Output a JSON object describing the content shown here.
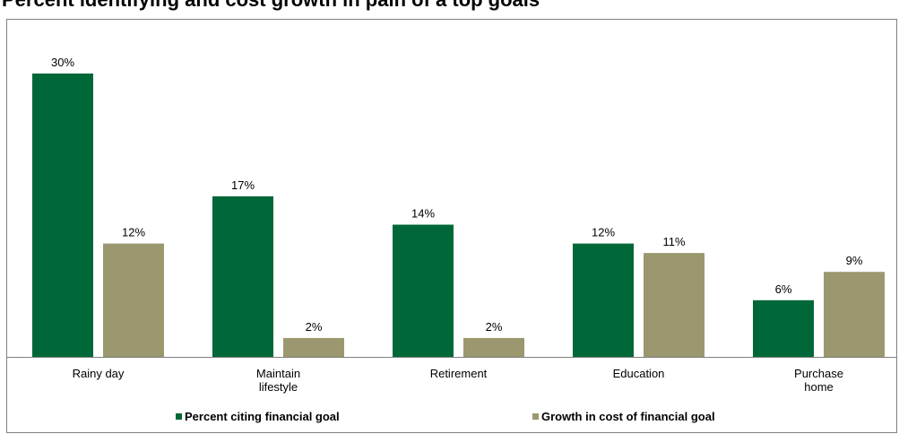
{
  "chart_data": {
    "type": "bar",
    "title": "Percent identifying and cost growth in pain of a top goals",
    "categories": [
      [
        "Rainy day"
      ],
      [
        "Maintain",
        "lifestyle"
      ],
      [
        "Retirement"
      ],
      [
        "Education"
      ],
      [
        "Purchase",
        "home"
      ]
    ],
    "series": [
      {
        "name": "Percent citing financial goal",
        "values": [
          30,
          17,
          14,
          12,
          6
        ],
        "color": "#006838"
      },
      {
        "name": "Growth in cost of financial goal",
        "values": [
          12,
          2,
          2,
          11,
          9
        ],
        "color": "#9b9870"
      }
    ],
    "value_format": "percent",
    "ylim": [
      0,
      30
    ],
    "grid": false,
    "legend_position": "bottom"
  }
}
